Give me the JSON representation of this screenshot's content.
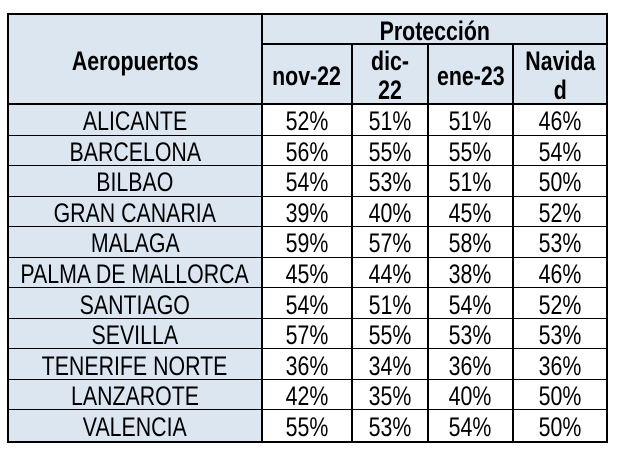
{
  "table": {
    "corner_header": "Aeropuertos",
    "group_header": "Protección",
    "columns": [
      "nov-22",
      "dic-\n22",
      "ene-23",
      "Navida\nd"
    ],
    "rows": [
      {
        "airport": "ALICANTE",
        "values": [
          "52%",
          "51%",
          "51%",
          "46%"
        ]
      },
      {
        "airport": "BARCELONA",
        "values": [
          "56%",
          "55%",
          "55%",
          "54%"
        ]
      },
      {
        "airport": "BILBAO",
        "values": [
          "54%",
          "53%",
          "51%",
          "50%"
        ]
      },
      {
        "airport": "GRAN CANARIA",
        "values": [
          "39%",
          "40%",
          "45%",
          "52%"
        ]
      },
      {
        "airport": "MALAGA",
        "values": [
          "59%",
          "57%",
          "58%",
          "53%"
        ]
      },
      {
        "airport": "PALMA DE MALLORCA",
        "values": [
          "45%",
          "44%",
          "38%",
          "46%"
        ]
      },
      {
        "airport": "SANTIAGO",
        "values": [
          "54%",
          "51%",
          "54%",
          "52%"
        ]
      },
      {
        "airport": "SEVILLA",
        "values": [
          "57%",
          "55%",
          "53%",
          "53%"
        ]
      },
      {
        "airport": "TENERIFE NORTE",
        "values": [
          "36%",
          "34%",
          "36%",
          "36%"
        ]
      },
      {
        "airport": "LANZAROTE",
        "values": [
          "42%",
          "35%",
          "40%",
          "50%"
        ]
      },
      {
        "airport": "VALENCIA",
        "values": [
          "55%",
          "53%",
          "54%",
          "50%"
        ]
      }
    ]
  },
  "chart_data": {
    "type": "table",
    "title": "Protección",
    "row_header": "Aeropuertos",
    "categories": [
      "nov-22",
      "dic-22",
      "ene-23",
      "Navidad"
    ],
    "series": [
      {
        "name": "ALICANTE",
        "values": [
          "52%",
          "51%",
          "51%",
          "46%"
        ]
      },
      {
        "name": "BARCELONA",
        "values": [
          "56%",
          "55%",
          "55%",
          "54%"
        ]
      },
      {
        "name": "BILBAO",
        "values": [
          "54%",
          "53%",
          "51%",
          "50%"
        ]
      },
      {
        "name": "GRAN CANARIA",
        "values": [
          "39%",
          "40%",
          "45%",
          "52%"
        ]
      },
      {
        "name": "MALAGA",
        "values": [
          "59%",
          "57%",
          "58%",
          "53%"
        ]
      },
      {
        "name": "PALMA DE MALLORCA",
        "values": [
          "45%",
          "44%",
          "38%",
          "46%"
        ]
      },
      {
        "name": "SANTIAGO",
        "values": [
          "54%",
          "51%",
          "54%",
          "52%"
        ]
      },
      {
        "name": "SEVILLA",
        "values": [
          "57%",
          "55%",
          "53%",
          "53%"
        ]
      },
      {
        "name": "TENERIFE NORTE",
        "values": [
          "36%",
          "34%",
          "36%",
          "36%"
        ]
      },
      {
        "name": "LANZAROTE",
        "values": [
          "42%",
          "35%",
          "40%",
          "50%"
        ]
      },
      {
        "name": "VALENCIA",
        "values": [
          "55%",
          "53%",
          "54%",
          "50%"
        ]
      }
    ]
  },
  "colors": {
    "header_fill": "#dce6f1",
    "cell_fill": "#ffffff",
    "border": "#000000",
    "text": "#000000",
    "page_background": "#ffffff"
  }
}
